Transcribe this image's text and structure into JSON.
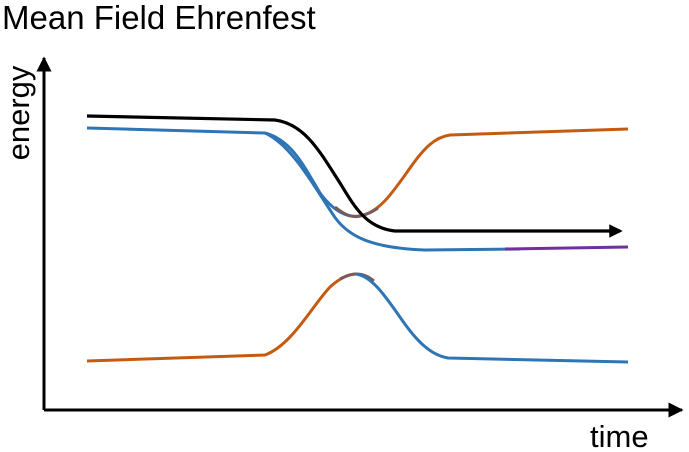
{
  "title": "Mean Field Ehrenfest",
  "axes": {
    "xlabel": "time",
    "ylabel": "energy"
  },
  "colors": {
    "axis": "#000000",
    "trajectory": "#000000",
    "orange": "#c55a11",
    "blue": "#2e75b6",
    "purple": "#7030a0",
    "mixed": "#7a5a5a"
  }
}
